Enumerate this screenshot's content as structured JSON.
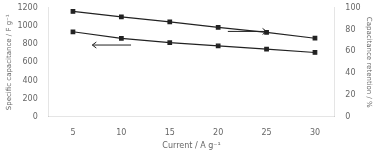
{
  "chart_data": {
    "type": "line",
    "x": [
      5,
      10,
      15,
      20,
      25,
      30
    ],
    "series": [
      {
        "color": "#222222",
        "marker": "square",
        "values": [
          1160,
          1100,
          1045,
          985,
          930,
          865
        ]
      },
      {
        "color": "#222222",
        "marker": "square",
        "axis": "y2",
        "values": [
          78,
          72,
          68,
          65,
          62,
          59
        ]
      }
    ],
    "x_label": "Current / A g⁻¹",
    "y_label": "Specific capacitance / F g⁻¹",
    "y2_label": "Capacitance retention / %",
    "xlim": [
      2.5,
      32
    ],
    "xticks": [
      5,
      10,
      15,
      20,
      25,
      30
    ],
    "ylim": [
      0,
      1200
    ],
    "yticks": [
      0,
      200,
      400,
      600,
      800,
      1000,
      1200
    ],
    "y2lim": [
      0,
      100
    ],
    "y2ticks": [
      0,
      20,
      40,
      60,
      80,
      100
    ],
    "annotations": [
      {
        "x": 21,
        "x_end": 25,
        "y": 940,
        "color": "#222222"
      },
      {
        "x": 11,
        "x_end": 7,
        "y": 790,
        "color": "#222222"
      }
    ],
    "grid": false
  }
}
